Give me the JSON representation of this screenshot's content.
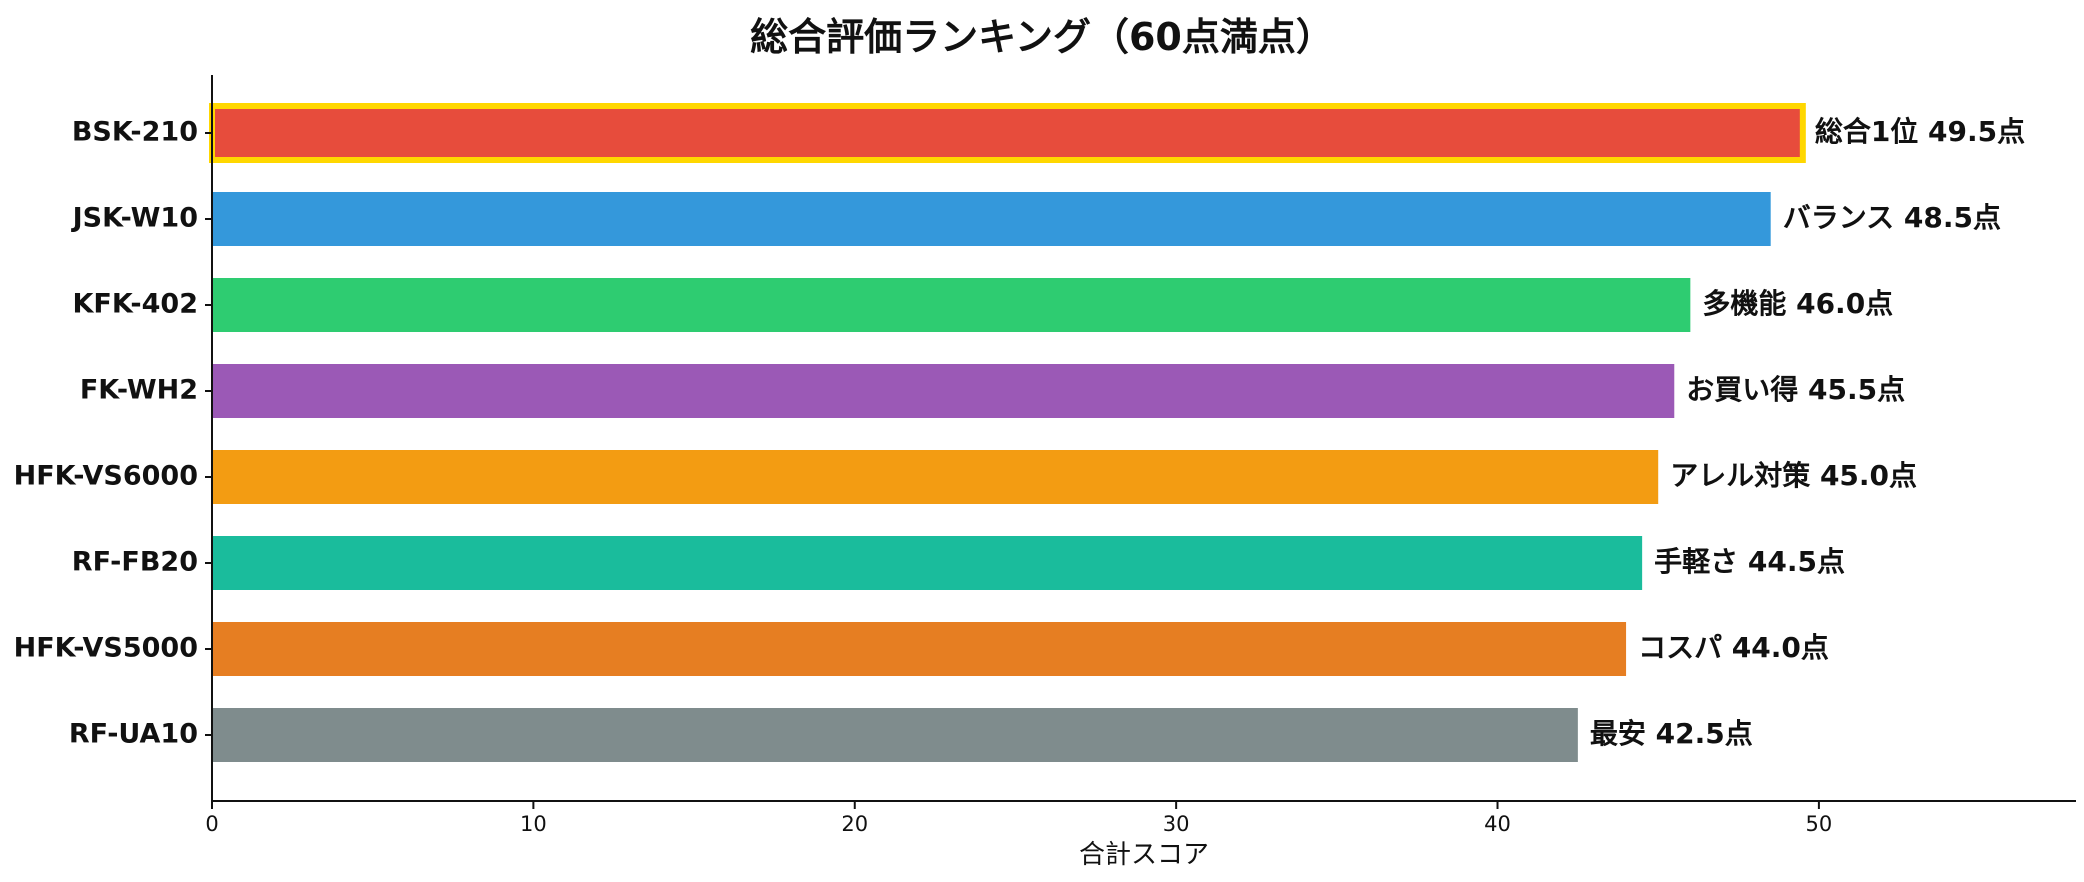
{
  "chart_data": {
    "type": "bar",
    "orientation": "horizontal",
    "title": "総合評価ランキング（60点満点）",
    "xlabel": "合計スコア",
    "ylabel": "",
    "xlim": [
      0,
      58
    ],
    "xticks": [
      0,
      10,
      20,
      30,
      40,
      50
    ],
    "grid": false,
    "categories": [
      "BSK-210",
      "JSK-W10",
      "KFK-402",
      "FK-WH2",
      "HFK-VS6000",
      "RF-FB20",
      "HFK-VS5000",
      "RF-UA10"
    ],
    "values": [
      49.5,
      48.5,
      46.0,
      45.5,
      45.0,
      44.5,
      44.0,
      42.5
    ],
    "colors": [
      "#e74c3c",
      "#3498db",
      "#2ecc71",
      "#9b59b6",
      "#f39c12",
      "#1abc9c",
      "#e67e22",
      "#7f8c8d"
    ],
    "highlight": {
      "index": 0,
      "edge_color": "#ffd700"
    },
    "labels": [
      "総合1位 49.5点",
      "バランス 48.5点",
      "多機能 46.0点",
      "お買い得 45.5点",
      "アレル対策 45.0点",
      "手軽さ 44.5点",
      "コスパ 44.0点",
      "最安 42.5点"
    ]
  }
}
